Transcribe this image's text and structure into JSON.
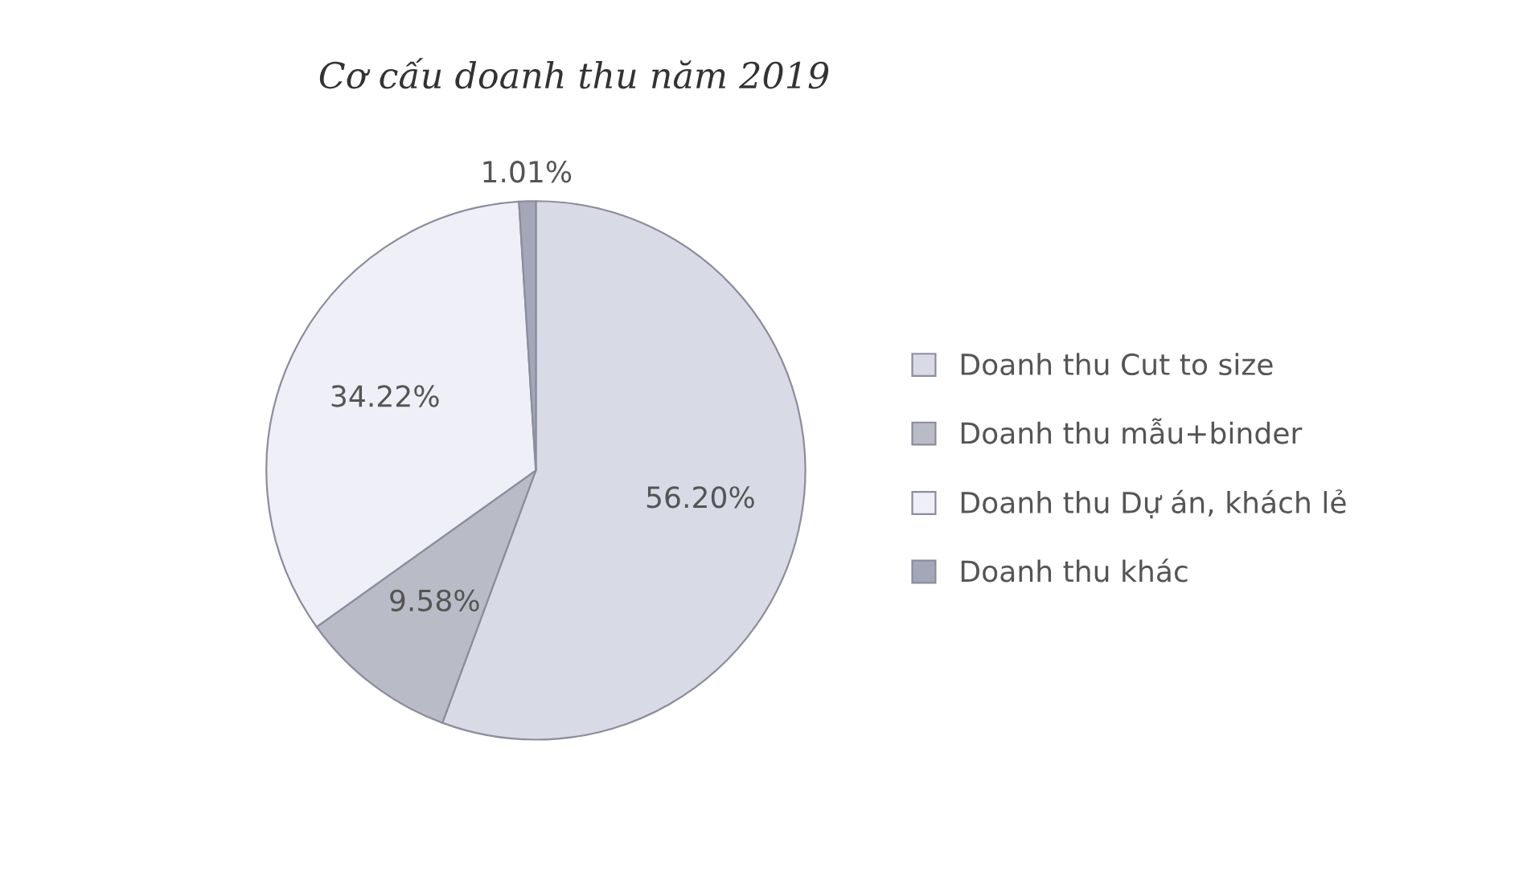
{
  "chart_data": {
    "type": "pie",
    "title": "Cơ cấu doanh thu năm 2019",
    "categories": [
      "Doanh thu Cut to size",
      "Doanh thu mẫu+binder",
      "Doanh thu Dự án, khách lẻ",
      "Doanh thu khác"
    ],
    "values": [
      56.2,
      9.58,
      34.22,
      1.01
    ],
    "colors": [
      "#d8dae6",
      "#b9bbc6",
      "#efeff7",
      "#a3a7b8"
    ],
    "value_labels": [
      "56.20%",
      "9.58%",
      "34.22%",
      "1.01%"
    ],
    "legend": "right"
  }
}
